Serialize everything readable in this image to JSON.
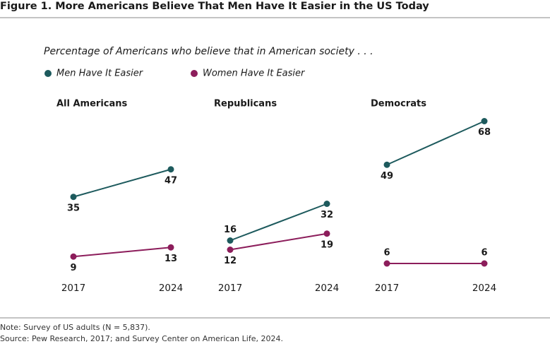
{
  "title": "Figure 1. More Americans Believe That Men Have It Easier in the US Today",
  "subtitle": "Percentage of Americans who believe that in American society . . .",
  "legend": [
    {
      "name": "Men Have It Easier",
      "color": "#1d5a5d"
    },
    {
      "name": "Women Have It Easier",
      "color": "#8c1d5b"
    }
  ],
  "chart_data": [
    {
      "type": "line",
      "title": "All Americans",
      "categories": [
        "2017",
        "2024"
      ],
      "series": [
        {
          "values": [
            35,
            47
          ]
        },
        {
          "values": [
            9,
            13
          ]
        }
      ]
    },
    {
      "type": "line",
      "title": "Republicans",
      "categories": [
        "2017",
        "2024"
      ],
      "series": [
        {
          "values": [
            16,
            32
          ]
        },
        {
          "values": [
            12,
            19
          ]
        }
      ]
    },
    {
      "type": "line",
      "title": "Democrats",
      "categories": [
        "2017",
        "2024"
      ],
      "series": [
        {
          "values": [
            49,
            68
          ]
        },
        {
          "values": [
            6,
            6
          ]
        }
      ]
    }
  ],
  "note": "Note: Survey of US adults (N = 5,837).",
  "source": "Source: Pew Research, 2017; and Survey Center on American Life, 2024."
}
